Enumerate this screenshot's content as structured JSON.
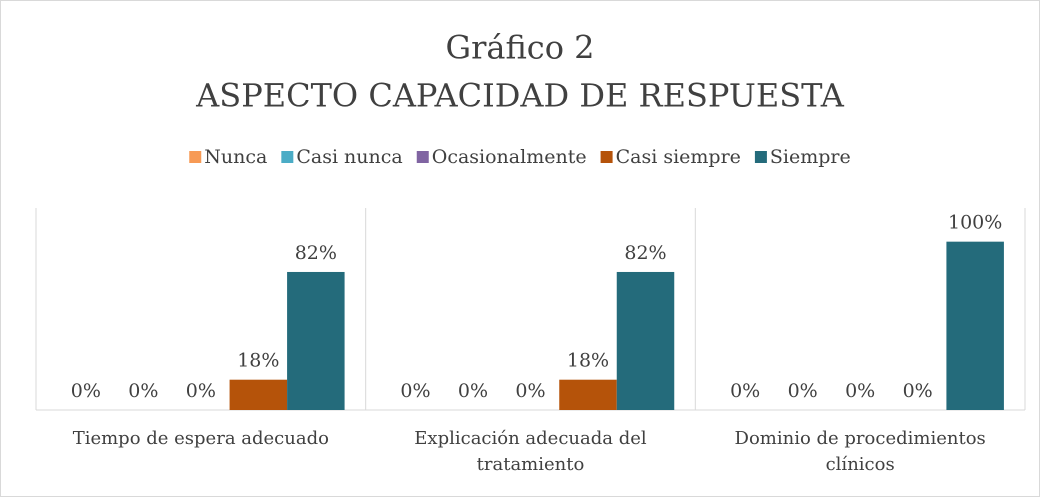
{
  "chart_data": {
    "type": "bar",
    "title": "Gráfico 2",
    "subtitle": "ASPECTO CAPACIDAD DE RESPUESTA",
    "categories": [
      "Tiempo de espera adecuado",
      "Explicación adecuada del tratamiento",
      "Dominio de procedimientos clínicos"
    ],
    "series": [
      {
        "name": "Nunca",
        "color": "#f79a55",
        "values": [
          0,
          0,
          0
        ],
        "value_labels": [
          "0%",
          "0%",
          "0%"
        ]
      },
      {
        "name": "Casi nunca",
        "color": "#4bacc6",
        "values": [
          0,
          0,
          0
        ],
        "value_labels": [
          "0%",
          "0%",
          "0%"
        ]
      },
      {
        "name": "Ocasionalmente",
        "color": "#8064a2",
        "values": [
          0,
          0,
          0
        ],
        "value_labels": [
          "0%",
          "0%",
          "0%"
        ]
      },
      {
        "name": "Casi siempre",
        "color": "#b5530a",
        "values": [
          18,
          18,
          0
        ],
        "value_labels": [
          "18%",
          "18%",
          "0%"
        ]
      },
      {
        "name": "Siempre",
        "color": "#246b7b",
        "values": [
          82,
          82,
          100
        ],
        "value_labels": [
          "82%",
          "82%",
          "100%"
        ]
      }
    ],
    "ylim": [
      0,
      120
    ],
    "legend": "top"
  }
}
